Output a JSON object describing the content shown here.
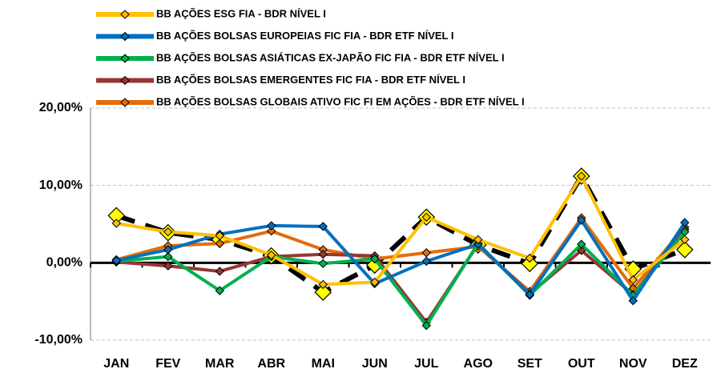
{
  "chart_data": {
    "type": "line",
    "categories": [
      "JAN",
      "FEV",
      "MAR",
      "ABR",
      "MAI",
      "JUN",
      "JUL",
      "AGO",
      "SET",
      "OUT",
      "NOV",
      "DEZ"
    ],
    "series": [
      {
        "name": "BB AÇÕES ESG FIA - BDR NÍVEL I",
        "color": "#ffc000",
        "values": [
          5.1,
          4.0,
          3.5,
          1.0,
          -2.8,
          -2.5,
          5.9,
          3.0,
          0.6,
          11.2,
          -2.2,
          3.0
        ]
      },
      {
        "name": "BB AÇÕES BOLSAS EUROPEIAS FIC FIA - BDR ETF NÍVEL I",
        "color": "#0070c0",
        "values": [
          0.3,
          1.7,
          3.7,
          4.8,
          4.7,
          -2.7,
          0.2,
          2.4,
          -4.1,
          5.5,
          -4.9,
          5.2
        ]
      },
      {
        "name": "BB AÇÕES BOLSAS ASIÁTICAS EX-JAPÃO FIC FIA - BDR ETF NÍVEL I",
        "color": "#00b050",
        "values": [
          0.2,
          0.8,
          -3.6,
          0.8,
          -0.1,
          0.5,
          -8.1,
          2.5,
          -4.2,
          2.4,
          -4.2,
          4.0
        ]
      },
      {
        "name": "BB AÇÕES BOLSAS EMERGENTES FIC FIA - BDR ETF NÍVEL I",
        "color": "#953735",
        "values": [
          0.1,
          -0.4,
          -1.1,
          0.8,
          1.1,
          0.9,
          -7.7,
          2.4,
          -4.0,
          1.6,
          -4.1,
          4.3
        ]
      },
      {
        "name": "BB AÇÕES BOLSAS GLOBAIS ATIVO FIC FI EM AÇÕES - BDR ETF NÍVEL I",
        "color": "#e46c0a",
        "values": [
          0.4,
          2.2,
          2.5,
          4.1,
          1.7,
          0.5,
          1.3,
          2.1,
          -3.7,
          5.8,
          -3.3,
          4.6
        ]
      },
      {
        "color": "#000000",
        "values": [
          6.1,
          3.9,
          3.0,
          0.9,
          -3.8,
          -0.3,
          5.9,
          2.3,
          -0.1,
          11.2,
          -0.8,
          1.7
        ]
      }
    ],
    "ylim": [
      -10,
      20
    ],
    "yticks": [
      {
        "value": -10,
        "label": "-10,00%"
      },
      {
        "value": 0,
        "label": "0,00%"
      },
      {
        "value": 10,
        "label": "10,00%"
      },
      {
        "value": 20,
        "label": "20,00%"
      }
    ],
    "grid": true
  }
}
